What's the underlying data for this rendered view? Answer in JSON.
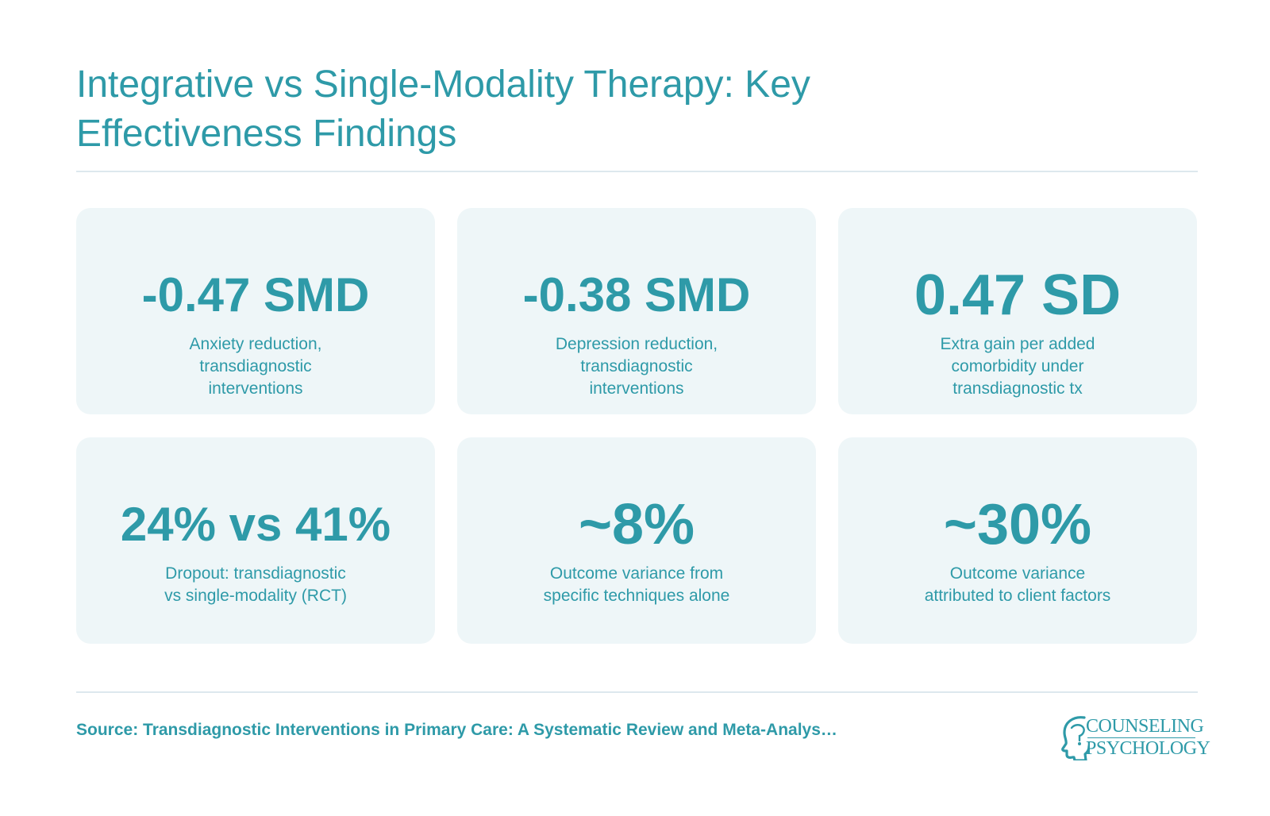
{
  "title": "Integrative vs Single-Modality Therapy: Key Effectiveness Findings",
  "cards": [
    {
      "stat": "-0.47 SMD",
      "desc": "Anxiety reduction, transdiagnostic interventions"
    },
    {
      "stat": "-0.38 SMD",
      "desc": "Depression reduction, transdiagnostic interventions"
    },
    {
      "stat": "0.47 SD",
      "desc": "Extra gain per added comorbidity under transdiagnostic tx"
    },
    {
      "stat": "24% vs 41%",
      "desc": "Dropout: transdiagnostic vs single-modality (RCT)"
    },
    {
      "stat": "~8%",
      "desc": "Outcome variance from specific techniques alone"
    },
    {
      "stat": "~30%",
      "desc": "Outcome variance attributed to client factors"
    }
  ],
  "source": "Source: Transdiagnostic Interventions in Primary Care: A Systematic Review and Meta-Analys…",
  "logo": {
    "line1": "COUNSELING",
    "line2": "PSYCHOLOGY",
    "icon": "head-profile-icon"
  },
  "colors": {
    "accent": "#2e9aa8",
    "card_bg": "#eef6f8",
    "rule": "#dde8ee"
  }
}
